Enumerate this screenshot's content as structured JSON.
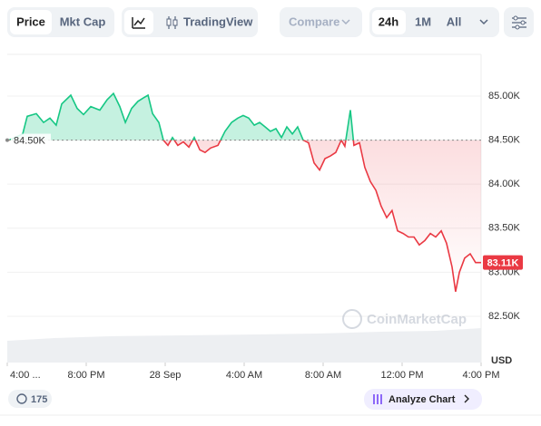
{
  "toolbar": {
    "price": "Price",
    "mkt_cap": "Mkt Cap",
    "tradingview": "TradingView",
    "compare": "Compare",
    "ranges": [
      "24h",
      "1M",
      "All"
    ]
  },
  "chart_data": {
    "type": "line",
    "x": [
      0.09,
      0.78,
      1.01,
      1.47,
      1.84,
      2.16,
      2.48,
      2.76,
      3.22,
      3.54,
      3.86,
      4.23,
      4.69,
      5.06,
      5.38,
      5.7,
      5.98,
      6.3,
      6.62,
      6.9,
      7.13,
      7.36,
      7.68,
      7.91,
      8.14,
      8.37,
      8.64,
      8.92,
      9.2,
      9.47,
      9.75,
      10.02,
      10.3,
      10.67,
      11.03,
      11.36,
      11.68,
      11.95,
      12.23,
      12.51,
      12.78,
      13.06,
      13.33,
      13.61,
      13.89,
      14.16,
      14.44,
      14.71,
      14.99,
      15.26,
      15.54,
      15.82,
      16.09,
      16.37,
      16.64,
      16.92,
      17.1,
      17.38,
      17.56,
      17.84,
      18.11,
      18.39,
      18.67,
      18.94,
      19.22,
      19.49,
      19.77,
      20.05,
      20.32,
      20.6,
      20.87,
      21.15,
      21.43,
      21.7,
      21.98,
      22.25,
      22.53,
      22.71,
      22.9,
      23.17,
      23.45,
      23.72,
      24.0
    ],
    "values": [
      84500,
      84570,
      84770,
      84800,
      84700,
      84750,
      84670,
      84910,
      85010,
      84860,
      84790,
      84880,
      84840,
      84960,
      85030,
      84880,
      84700,
      84860,
      84940,
      84980,
      85010,
      84800,
      84700,
      84500,
      84440,
      84530,
      84440,
      84480,
      84420,
      84530,
      84390,
      84360,
      84410,
      84440,
      84600,
      84700,
      84750,
      84780,
      84750,
      84670,
      84700,
      84650,
      84600,
      84630,
      84530,
      84650,
      84570,
      84650,
      84500,
      84470,
      84240,
      84160,
      84290,
      84320,
      84360,
      84500,
      84430,
      84840,
      84440,
      84470,
      84190,
      84030,
      83930,
      83750,
      83620,
      83700,
      83470,
      83440,
      83400,
      83400,
      83310,
      83360,
      83440,
      83400,
      83470,
      83330,
      83060,
      82780,
      83000,
      83160,
      83210,
      83110,
      83110
    ],
    "colors": {
      "up": "#16c784",
      "down": "#ea3943"
    },
    "baseline": {
      "value": 84500,
      "label": "84.50K"
    },
    "last_price": {
      "value": 83110,
      "label": "83.11K"
    },
    "xlim": [
      0,
      24
    ],
    "xticks": [
      {
        "value": 0,
        "label": "4:00 ..."
      },
      {
        "value": 4,
        "label": "8:00 PM"
      },
      {
        "value": 8,
        "label": "28 Sep"
      },
      {
        "value": 12,
        "label": "4:00 AM"
      },
      {
        "value": 16,
        "label": "8:00 AM"
      },
      {
        "value": 20,
        "label": "12:00 PM"
      },
      {
        "value": 24,
        "label": "4:00 PM"
      }
    ],
    "ylim": [
      81975,
      85473
    ],
    "yticks": [
      {
        "value": 82500,
        "label": "82.50K"
      },
      {
        "value": 83000,
        "label": "83.00K"
      },
      {
        "value": 83500,
        "label": "83.50K"
      },
      {
        "value": 84000,
        "label": "84.00K"
      },
      {
        "value": 84500,
        "label": "84.50K"
      },
      {
        "value": 85000,
        "label": "85.00K"
      }
    ],
    "grid": true,
    "currency": "USD",
    "watermark": "CoinMarketCap"
  },
  "footer": {
    "count": "175",
    "analyze": "Analyze Chart"
  }
}
